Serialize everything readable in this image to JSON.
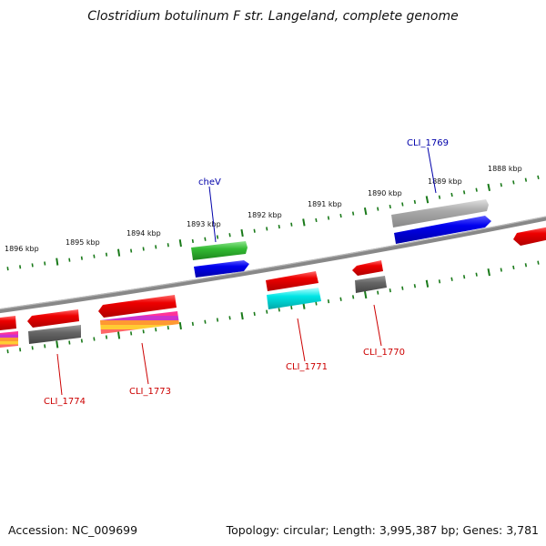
{
  "title": "Clostridium botulinum F str. Langeland, complete genome",
  "footer": {
    "accession": "Accession: NC_009699",
    "summary": "Topology: circular; Length: 3,995,387 bp; Genes: 3,781"
  },
  "scale_labels": [
    "1896 kbp",
    "1895 kbp",
    "1894 kbp",
    "1893 kbp",
    "1892 kbp",
    "1891 kbp",
    "1890 kbp",
    "1889 kbp",
    "1888 kbp"
  ],
  "gene_labels": [
    {
      "text": "cheV",
      "color": "#0000aa"
    },
    {
      "text": "CLI_1769",
      "color": "#0000aa"
    },
    {
      "text": "CLI_1771",
      "color": "#cc0000"
    },
    {
      "text": "CLI_1770",
      "color": "#cc0000"
    },
    {
      "text": "CLI_1774",
      "color": "#cc0000"
    },
    {
      "text": "CLI_1773",
      "color": "#cc0000"
    }
  ],
  "colors": {
    "backbone": "#777777",
    "tick": "#1a7a1a",
    "red": "#ee0000",
    "blue": "#0000ee",
    "green": "#33bb33",
    "cyan": "#00e5e5",
    "gray": "#666666",
    "lightgray": "#aaaaaa"
  }
}
